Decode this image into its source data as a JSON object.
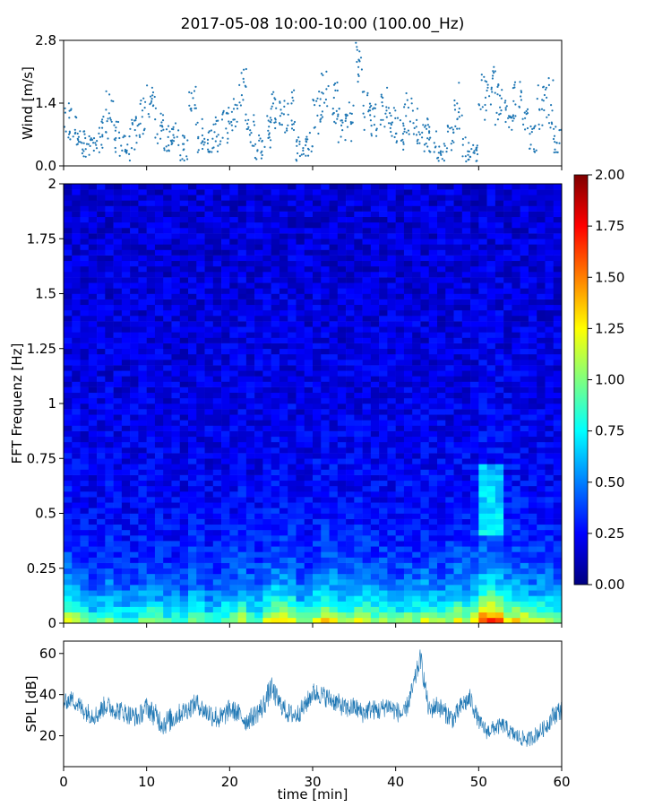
{
  "title": "2017-05-08 10:00-10:00 (100.00_Hz)",
  "colors": {
    "series": "#1f77b4",
    "colormap": [
      "#00007f",
      "#0000ff",
      "#007fff",
      "#00ffff",
      "#7fff7f",
      "#ffff00",
      "#ff7f00",
      "#ff0000",
      "#7f0000"
    ]
  },
  "chart_data": [
    {
      "type": "scatter",
      "name": "wind",
      "ylabel": "Wind [m/s]",
      "xlim": [
        0,
        60
      ],
      "ylim": [
        0,
        2.8
      ],
      "yticks": [
        "0.0",
        "1.4",
        "2.8"
      ],
      "x_minutes": [
        0,
        1,
        2,
        3,
        4,
        5,
        6,
        7,
        8,
        9,
        10,
        11,
        12,
        13,
        14,
        15,
        16,
        17,
        18,
        19,
        20,
        21,
        22,
        23,
        24,
        25,
        26,
        27,
        28,
        29,
        30,
        31,
        32,
        33,
        34,
        35,
        36,
        37,
        38,
        39,
        40,
        41,
        42,
        43,
        44,
        45,
        46,
        47,
        48,
        49,
        50,
        51,
        52,
        53,
        54,
        55,
        56,
        57,
        58,
        59
      ],
      "y_mean": [
        0.9,
        0.8,
        0.5,
        0.4,
        0.7,
        1.2,
        0.6,
        0.4,
        0.7,
        1.1,
        1.4,
        0.9,
        0.6,
        0.7,
        0.4,
        1.3,
        0.7,
        0.6,
        0.7,
        0.9,
        1.1,
        1.6,
        0.8,
        0.4,
        0.8,
        1.3,
        1.1,
        1.3,
        0.4,
        0.5,
        1.2,
        1.6,
        1.4,
        0.9,
        1.0,
        2.3,
        1.3,
        1.0,
        1.3,
        1.0,
        0.7,
        1.2,
        0.9,
        0.7,
        0.6,
        0.3,
        0.6,
        1.3,
        0.4,
        0.3,
        1.6,
        1.8,
        1.4,
        1.2,
        1.5,
        1.3,
        0.6,
        1.3,
        1.4,
        0.6
      ],
      "y_spread": [
        0.5,
        0.4,
        0.3,
        0.3,
        0.4,
        0.6,
        0.4,
        0.3,
        0.4,
        0.5,
        0.4,
        0.4,
        0.3,
        0.3,
        0.3,
        0.5,
        0.4,
        0.3,
        0.4,
        0.4,
        0.4,
        0.6,
        0.4,
        0.3,
        0.4,
        0.5,
        0.4,
        0.5,
        0.3,
        0.3,
        0.5,
        0.6,
        0.5,
        0.4,
        0.5,
        0.5,
        0.5,
        0.4,
        0.5,
        0.4,
        0.4,
        0.5,
        0.4,
        0.4,
        0.3,
        0.2,
        0.3,
        0.6,
        0.3,
        0.2,
        0.6,
        0.5,
        0.5,
        0.4,
        0.5,
        0.5,
        0.3,
        0.5,
        0.6,
        0.3
      ]
    },
    {
      "type": "heatmap",
      "name": "spectrogram",
      "ylabel": "FFT Frequenz [Hz]",
      "xlim": [
        0,
        60
      ],
      "ylim": [
        0,
        2
      ],
      "yticks": [
        "0",
        "0.25",
        "0.5",
        "0.75",
        "1",
        "1.25",
        "1.5",
        "1.75",
        "2"
      ],
      "colorbar": {
        "range": [
          0,
          2
        ],
        "ticks": [
          "0.00",
          "0.25",
          "0.50",
          "0.75",
          "1.00",
          "1.25",
          "1.50",
          "1.75",
          "2.00"
        ]
      },
      "column_activity": [
        0.9,
        0.85,
        0.7,
        0.6,
        0.7,
        0.8,
        0.65,
        0.6,
        0.6,
        0.7,
        0.75,
        0.7,
        0.6,
        0.6,
        0.55,
        0.8,
        0.7,
        0.6,
        0.6,
        0.7,
        0.75,
        0.9,
        0.7,
        0.65,
        0.85,
        1.0,
        1.0,
        0.95,
        0.7,
        0.7,
        0.9,
        1.0,
        0.95,
        0.8,
        0.8,
        0.9,
        0.85,
        0.8,
        0.8,
        0.75,
        0.7,
        0.8,
        0.75,
        0.9,
        0.8,
        0.75,
        0.8,
        0.95,
        0.85,
        0.9,
        1.3,
        1.3,
        1.2,
        1.0,
        1.0,
        0.95,
        0.8,
        0.85,
        0.8,
        0.7
      ],
      "time_bins": 60,
      "freq_bins": 80
    },
    {
      "type": "line",
      "name": "spl",
      "ylabel": "SPL [dB]",
      "xlabel": "time [min]",
      "xlim": [
        0,
        60
      ],
      "ylim": [
        5,
        66
      ],
      "yticks": [
        "20",
        "40",
        "60"
      ],
      "xticks": [
        "0",
        "10",
        "20",
        "30",
        "40",
        "50",
        "60"
      ],
      "x_minutes": [
        0,
        1,
        2,
        3,
        4,
        5,
        6,
        7,
        8,
        9,
        10,
        11,
        12,
        13,
        14,
        15,
        16,
        17,
        18,
        19,
        20,
        21,
        22,
        23,
        24,
        25,
        26,
        27,
        28,
        29,
        30,
        31,
        32,
        33,
        34,
        35,
        36,
        37,
        38,
        39,
        40,
        41,
        42,
        43,
        44,
        45,
        46,
        47,
        48,
        49,
        50,
        51,
        52,
        53,
        54,
        55,
        56,
        57,
        58,
        59,
        60
      ],
      "y_mean": [
        36,
        38,
        34,
        31,
        30,
        35,
        33,
        32,
        30,
        29,
        34,
        30,
        26,
        28,
        31,
        33,
        36,
        32,
        30,
        28,
        33,
        31,
        27,
        30,
        34,
        43,
        36,
        31,
        30,
        34,
        41,
        40,
        38,
        36,
        33,
        34,
        31,
        33,
        32,
        35,
        32,
        30,
        42,
        58,
        32,
        35,
        31,
        28,
        35,
        38,
        27,
        22,
        24,
        25,
        21,
        19,
        18,
        21,
        24,
        30,
        33
      ],
      "y_band": [
        4,
        4,
        5,
        5,
        5,
        5,
        5,
        5,
        5,
        5,
        5,
        6,
        6,
        6,
        5,
        5,
        5,
        5,
        6,
        6,
        5,
        5,
        5,
        5,
        6,
        6,
        5,
        5,
        5,
        5,
        5,
        5,
        5,
        5,
        5,
        5,
        5,
        5,
        5,
        5,
        5,
        5,
        5,
        5,
        5,
        5,
        5,
        5,
        5,
        5,
        4,
        4,
        4,
        4,
        4,
        4,
        4,
        4,
        4,
        5,
        5
      ]
    }
  ]
}
